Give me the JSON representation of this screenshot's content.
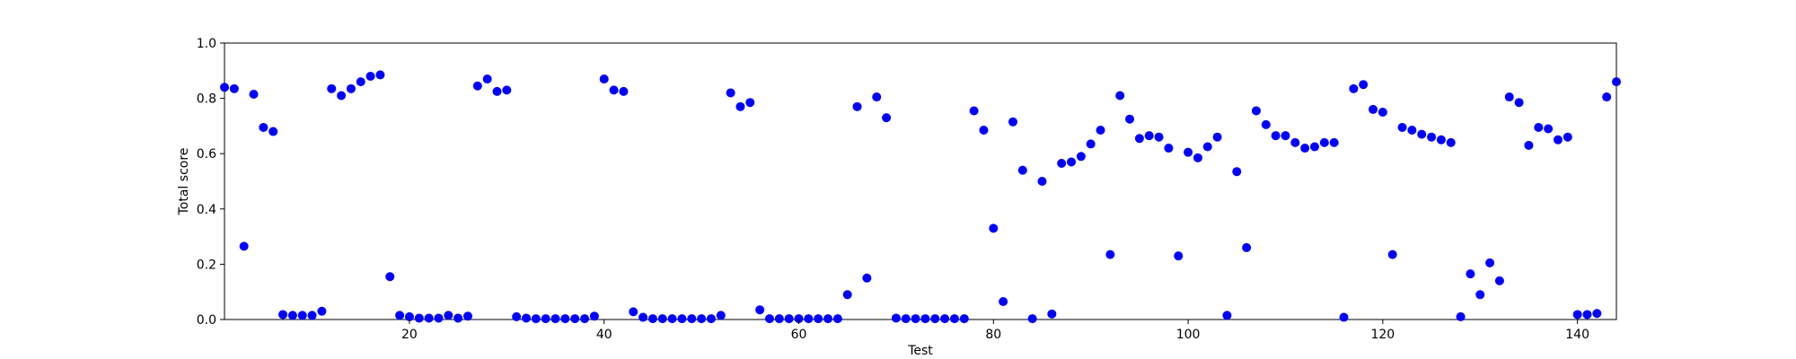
{
  "chart_data": {
    "type": "scatter",
    "xlabel": "Test",
    "ylabel": "Total score",
    "xlim": [
      1,
      144
    ],
    "ylim": [
      0.0,
      1.0
    ],
    "x_ticks": [
      20,
      40,
      60,
      80,
      100,
      120,
      140
    ],
    "x_tick_labels": [
      "20",
      "40",
      "60",
      "80",
      "100",
      "120",
      "140"
    ],
    "y_ticks": [
      0.0,
      0.2,
      0.4,
      0.6,
      0.8,
      1.0
    ],
    "y_tick_labels": [
      "0.0",
      "0.2",
      "0.4",
      "0.6",
      "0.8",
      "1.0"
    ],
    "grid": false,
    "marker_color": "#0000ff",
    "series": [
      {
        "x": [
          1,
          2,
          3,
          4,
          5,
          6,
          7,
          8,
          9,
          10,
          11,
          12,
          13,
          14,
          15,
          16,
          17,
          18,
          19,
          20,
          21,
          22,
          23,
          24,
          25,
          26,
          27,
          28,
          29,
          30,
          31,
          32,
          33,
          34,
          35,
          36,
          37,
          38,
          39,
          40,
          41,
          42,
          43,
          44,
          45,
          46,
          47,
          48,
          49,
          50,
          51,
          52,
          53,
          54,
          55,
          56,
          57,
          58,
          59,
          60,
          61,
          62,
          63,
          64,
          65,
          66,
          67,
          68,
          69,
          70,
          71,
          72,
          73,
          74,
          75,
          76,
          77,
          78,
          79,
          80,
          81,
          82,
          83,
          84,
          85,
          86,
          87,
          88,
          89,
          90,
          91,
          92,
          93,
          94,
          95,
          96,
          97,
          98,
          99,
          100,
          101,
          102,
          103,
          104,
          105,
          106,
          107,
          108,
          109,
          110,
          111,
          112,
          113,
          114,
          115,
          116,
          117,
          118,
          119,
          120,
          121,
          122,
          123,
          124,
          125,
          126,
          127,
          128,
          129,
          130,
          131,
          132,
          133,
          134,
          135,
          136,
          137,
          138,
          139,
          140,
          141,
          142,
          143,
          144
        ],
        "y": [
          0.84,
          0.835,
          0.265,
          0.815,
          0.695,
          0.68,
          0.018,
          0.015,
          0.015,
          0.015,
          0.03,
          0.835,
          0.81,
          0.835,
          0.86,
          0.88,
          0.885,
          0.155,
          0.015,
          0.01,
          0.005,
          0.005,
          0.005,
          0.015,
          0.005,
          0.012,
          0.845,
          0.87,
          0.825,
          0.83,
          0.01,
          0.005,
          0.003,
          0.003,
          0.003,
          0.003,
          0.003,
          0.003,
          0.012,
          0.87,
          0.83,
          0.825,
          0.028,
          0.008,
          0.003,
          0.003,
          0.003,
          0.003,
          0.003,
          0.003,
          0.003,
          0.015,
          0.82,
          0.77,
          0.785,
          0.035,
          0.003,
          0.003,
          0.003,
          0.003,
          0.003,
          0.003,
          0.003,
          0.003,
          0.09,
          0.77,
          0.15,
          0.805,
          0.73,
          0.005,
          0.003,
          0.003,
          0.003,
          0.003,
          0.003,
          0.003,
          0.003,
          0.755,
          0.685,
          0.33,
          0.065,
          0.715,
          0.54,
          0.003,
          0.5,
          0.02,
          0.565,
          0.57,
          0.59,
          0.635,
          0.685,
          0.235,
          0.81,
          0.725,
          0.655,
          0.665,
          0.66,
          0.62,
          0.23,
          0.605,
          0.585,
          0.625,
          0.66,
          0.015,
          0.535,
          0.26,
          0.755,
          0.705,
          0.665,
          0.665,
          0.64,
          0.62,
          0.625,
          0.64,
          0.64,
          0.008,
          0.835,
          0.85,
          0.76,
          0.75,
          0.235,
          0.695,
          0.685,
          0.67,
          0.66,
          0.65,
          0.64,
          0.01,
          0.165,
          0.09,
          0.205,
          0.14,
          0.805,
          0.785,
          0.63,
          0.695,
          0.69,
          0.65,
          0.66,
          0.018,
          0.018,
          0.022,
          0.805,
          0.86
        ]
      }
    ]
  }
}
